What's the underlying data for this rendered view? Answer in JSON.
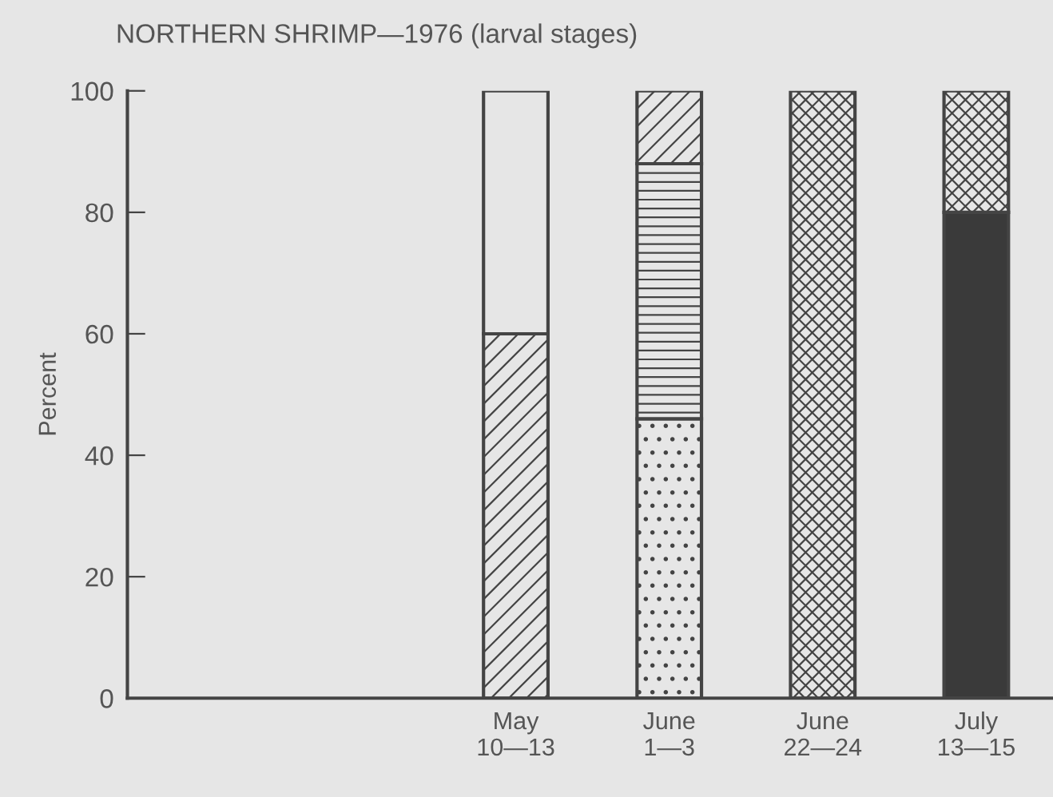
{
  "chart_data": {
    "type": "bar",
    "title": "NORTHERN SHRIMP—1976 (larval stages)",
    "ylabel": "Percent",
    "categories": [
      null,
      null,
      "May\n10—13",
      "June\n1—3",
      "June\n22—24",
      "July\n13—15"
    ],
    "stacked": true,
    "series": [
      {
        "color": "#3a3a3a",
        "values": [
          null,
          null,
          0,
          0,
          0,
          80
        ]
      },
      {
        "color": "#444444",
        "values": [
          null,
          null,
          0,
          0,
          100,
          20
        ]
      },
      {
        "color": "#444444",
        "values": [
          null,
          null,
          0,
          46,
          0,
          0
        ]
      },
      {
        "color": "#444444",
        "values": [
          null,
          null,
          0,
          42,
          0,
          0
        ]
      },
      {
        "color": "#444444",
        "values": [
          null,
          null,
          60,
          12,
          0,
          0
        ]
      },
      {
        "color": "#e6e6e6",
        "values": [
          null,
          null,
          40,
          0,
          0,
          0
        ]
      }
    ],
    "ylim": [
      0,
      100
    ],
    "yticks": [
      0,
      20,
      40,
      60,
      80,
      100
    ],
    "grid": false,
    "legend": false
  }
}
